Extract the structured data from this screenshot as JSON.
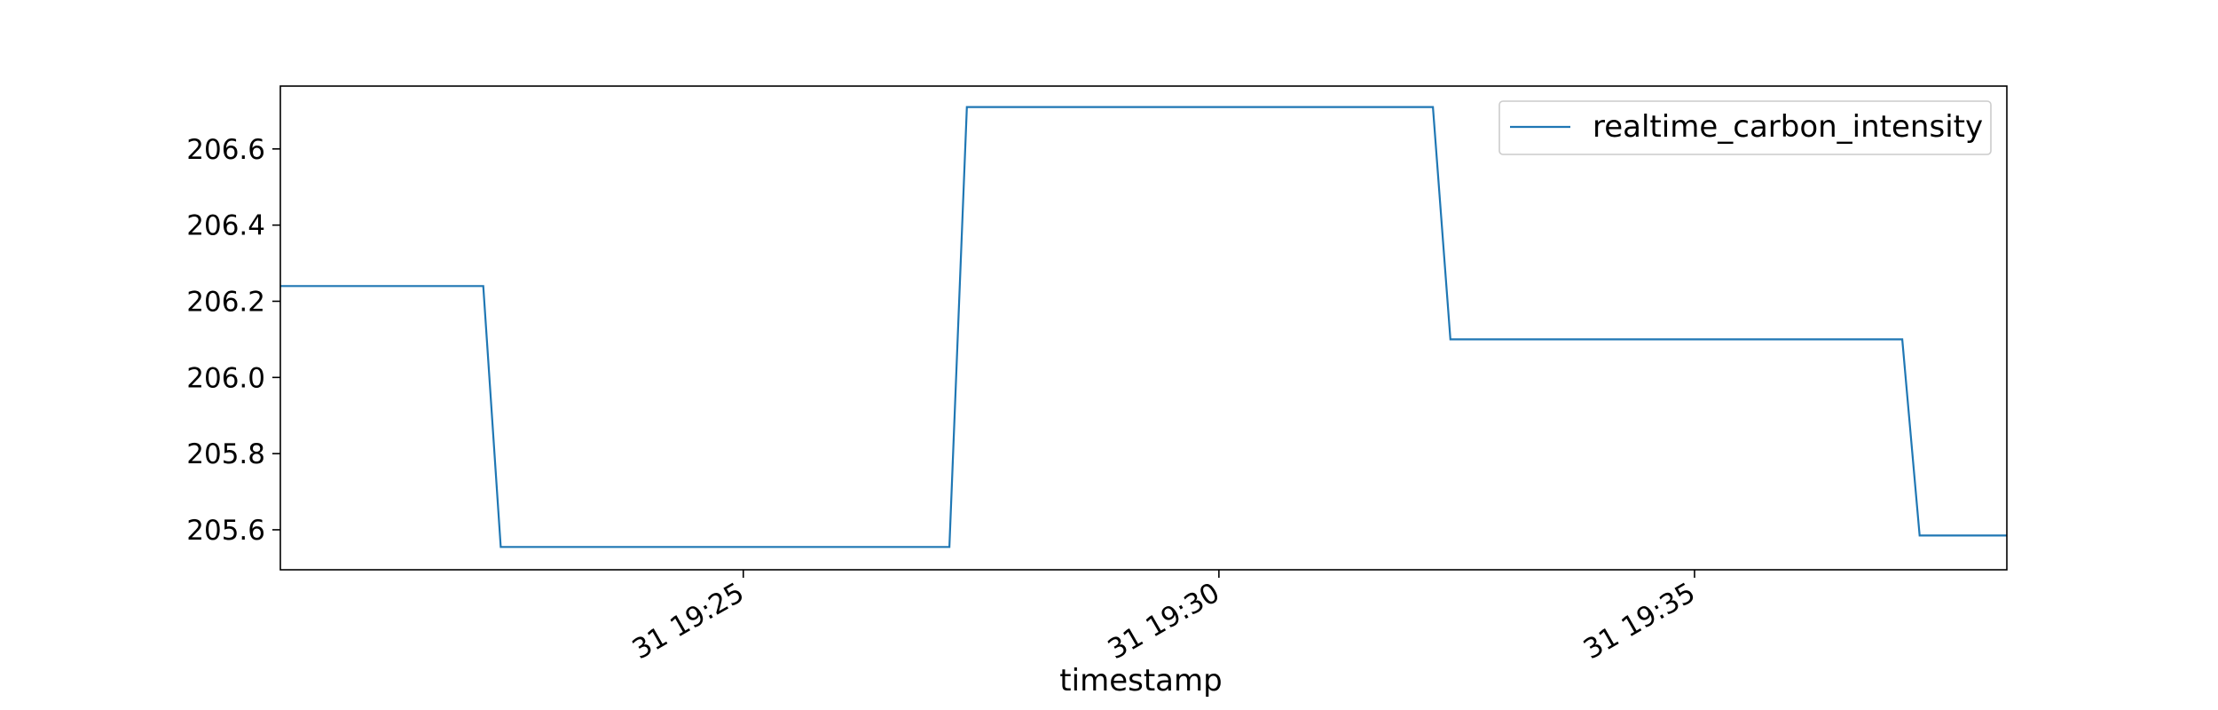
{
  "chart_data": {
    "type": "line",
    "title": "",
    "xlabel": "timestamp",
    "ylabel": "",
    "x_tick_labels": [
      "31 19:25",
      "31 19:30",
      "31 19:35"
    ],
    "y_tick_labels": [
      "205.6",
      "205.8",
      "206.0",
      "206.2",
      "206.4",
      "206.6"
    ],
    "x_tick_values": [
      "19:25",
      "19:30",
      "19:35"
    ],
    "y_tick_values": [
      205.6,
      205.8,
      206.0,
      206.2,
      206.4,
      206.6
    ],
    "xlim": [
      "19:20:08",
      "19:38:17"
    ],
    "ylim": [
      205.495,
      206.765
    ],
    "grid": false,
    "legend_position": "top-right",
    "series": [
      {
        "name": "realtime_carbon_intensity",
        "color": "#1f77b4",
        "points": [
          {
            "x": "19:20:08",
            "y": 206.24
          },
          {
            "x": "19:22:16",
            "y": 206.24
          },
          {
            "x": "19:22:27",
            "y": 205.555
          },
          {
            "x": "19:27:10",
            "y": 205.555
          },
          {
            "x": "19:27:21",
            "y": 206.71
          },
          {
            "x": "19:32:15",
            "y": 206.71
          },
          {
            "x": "19:32:26",
            "y": 206.1
          },
          {
            "x": "19:37:11",
            "y": 206.1
          },
          {
            "x": "19:37:22",
            "y": 205.585
          },
          {
            "x": "19:38:17",
            "y": 205.585
          }
        ]
      }
    ]
  }
}
